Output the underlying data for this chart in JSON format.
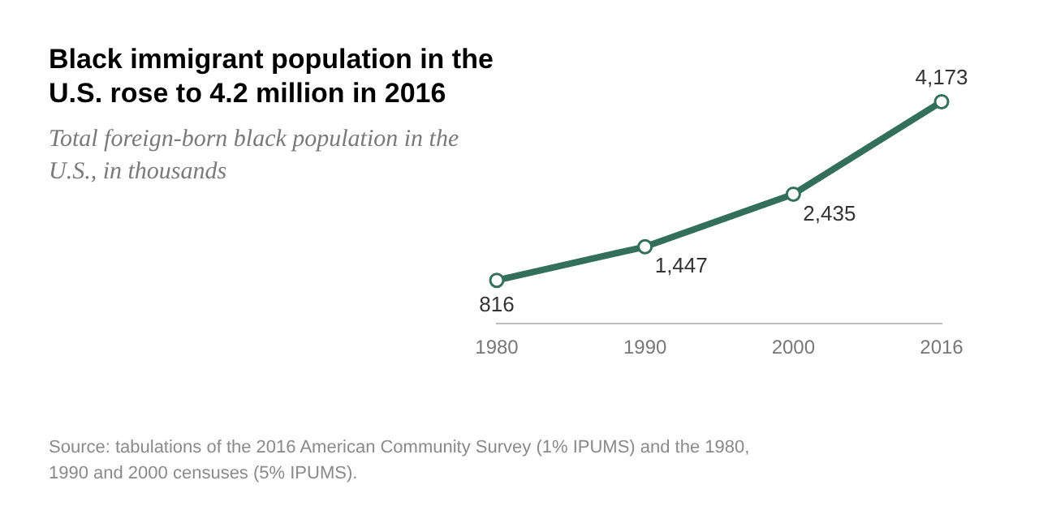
{
  "chart_data": {
    "type": "line",
    "title": "Black immigrant population in the U.S. rose to 4.2 million in 2016",
    "subtitle": "Total foreign-born black population in the U.S., in thousands",
    "categories": [
      "1980",
      "1990",
      "2000",
      "2016"
    ],
    "series": [
      {
        "color": "#346f5b",
        "values": [
          816,
          1447,
          2435,
          4173
        ],
        "value_labels": [
          "816",
          "1,447",
          "2,435",
          "4,173"
        ]
      }
    ],
    "tick_labels": "x",
    "grid": false,
    "legend": false,
    "marker": "circle",
    "line_style": "solid",
    "annotations": [
      "Source: tabulations of the 2016 American Community Survey (1% IPUMS) and the 1980, 1990 and 2000 censuses (5% IPUMS)."
    ]
  }
}
